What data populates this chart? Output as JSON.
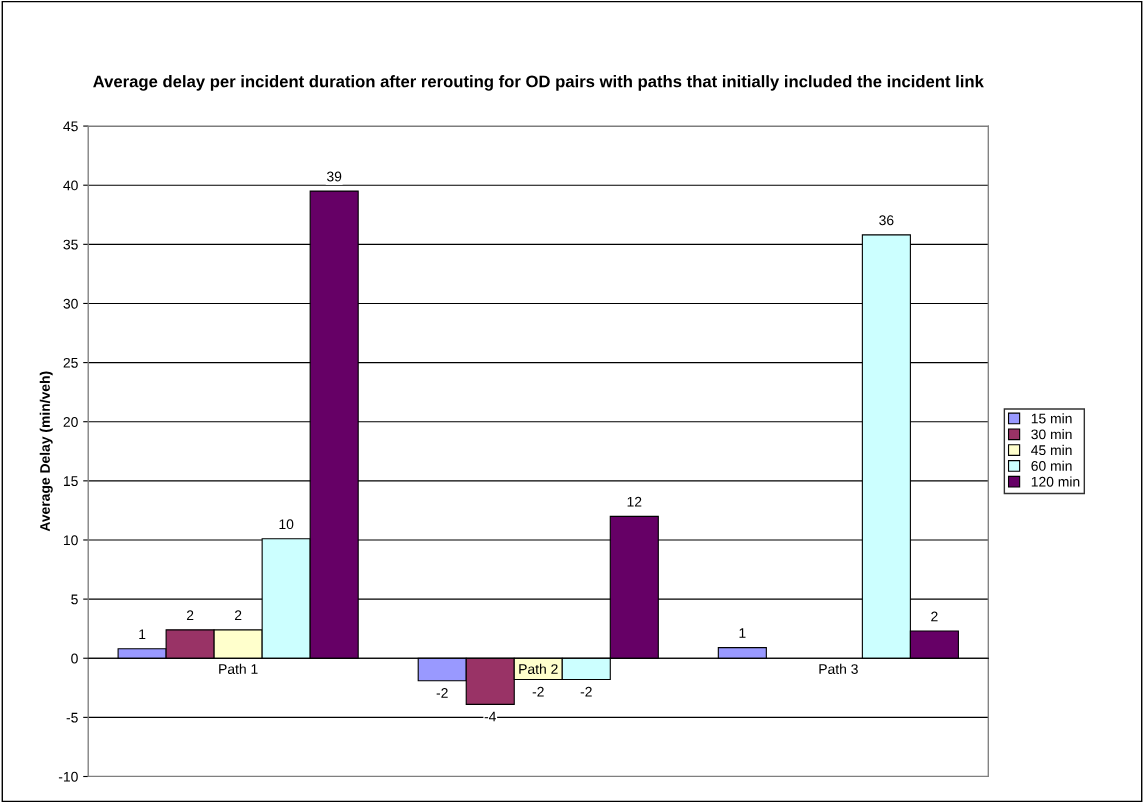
{
  "chart_data": {
    "type": "bar",
    "title": "Average delay per incident duration after rerouting for OD pairs with paths that initially included the incident link",
    "ylabel": "Average Delay (min/veh)",
    "categories": [
      "Path 1",
      "Path 2",
      "Path 3"
    ],
    "series": [
      {
        "name": "15 min",
        "color": "#9999ff",
        "values": [
          0.8,
          -1.9,
          0.9
        ],
        "value_labels": [
          "1",
          "-2",
          "1"
        ]
      },
      {
        "name": "30 min",
        "color": "#993366",
        "values": [
          2.4,
          -3.9,
          null
        ],
        "value_labels": [
          "2",
          "-4",
          null
        ]
      },
      {
        "name": "45 min",
        "color": "#ffffcc",
        "values": [
          2.4,
          -1.8,
          null
        ],
        "value_labels": [
          "2",
          "-2",
          null
        ]
      },
      {
        "name": "60 min",
        "color": "#ccffff",
        "values": [
          10.1,
          -1.8,
          35.8
        ],
        "value_labels": [
          "10",
          "-2",
          "36"
        ]
      },
      {
        "name": "120 min",
        "color": "#660066",
        "values": [
          39.5,
          12.0,
          2.3
        ],
        "value_labels": [
          "39",
          "12",
          "2"
        ]
      }
    ],
    "ylim": [
      -10,
      45
    ],
    "yticks": [
      -10,
      -5,
      0,
      5,
      10,
      15,
      20,
      25,
      30,
      35,
      40,
      45
    ],
    "grid": "y",
    "legend": "right"
  }
}
